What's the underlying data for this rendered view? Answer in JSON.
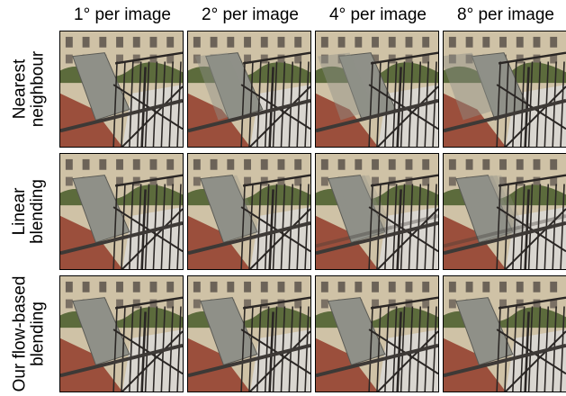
{
  "figure": {
    "column_headers": [
      "1° per image",
      "2° per image",
      "4° per image",
      "8° per image"
    ],
    "rows": [
      {
        "label_lines": [
          "Nearest",
          "neighbour"
        ],
        "artifact": "ghost"
      },
      {
        "label_lines": [
          "Linear",
          "blending"
        ],
        "artifact": "blur"
      },
      {
        "label_lines": [
          "Our flow-based",
          "blending"
        ],
        "artifact": "clean"
      }
    ],
    "colors": {
      "sky_building": "#cfc2a6",
      "wall": "#9b4f3c",
      "roof": "#8f9088",
      "railing": "#2a2624",
      "floor": "#d9d6d0",
      "foliage": "#5c6b3c"
    }
  }
}
